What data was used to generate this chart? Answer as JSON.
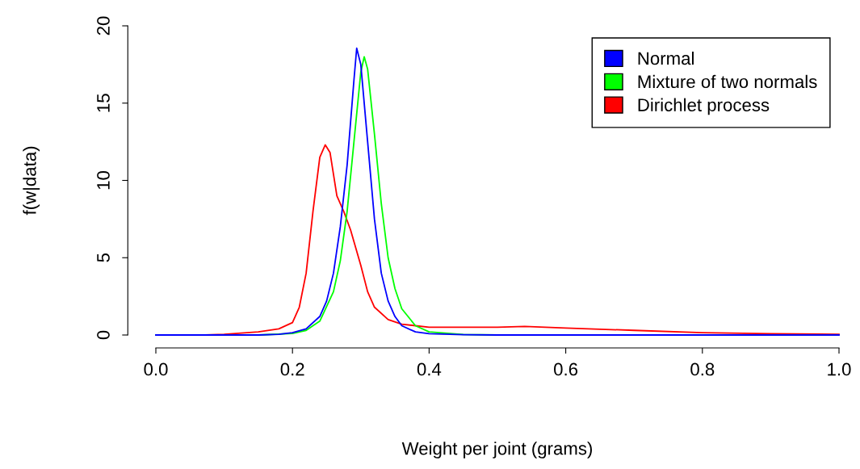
{
  "chart_data": {
    "type": "line",
    "xlabel": "Weight per joint (grams)",
    "ylabel": "f(w|data)",
    "xlim": [
      0,
      1
    ],
    "ylim": [
      0,
      20
    ],
    "xticks": [
      {
        "value": 0,
        "label": "0.0"
      },
      0.2,
      0.4,
      0.6,
      0.8,
      {
        "value": 1,
        "label": "1.0"
      }
    ],
    "yticks": [
      0,
      5,
      10,
      15,
      20
    ],
    "grid": false,
    "legend": "top right",
    "marker": "none",
    "line_style": "solid",
    "series": [
      {
        "name": "Normal",
        "color": "#0000ff",
        "x": [
          0.0,
          0.15,
          0.18,
          0.2,
          0.22,
          0.24,
          0.25,
          0.26,
          0.27,
          0.28,
          0.29,
          0.294,
          0.3,
          0.31,
          0.32,
          0.33,
          0.34,
          0.35,
          0.36,
          0.38,
          0.4,
          0.45,
          0.5,
          1.0
        ],
        "values": [
          0,
          0,
          0.05,
          0.15,
          0.4,
          1.2,
          2.2,
          4.0,
          7.0,
          11.0,
          16.5,
          18.55,
          17.5,
          12.5,
          7.5,
          4.0,
          2.2,
          1.2,
          0.6,
          0.2,
          0.08,
          0.02,
          0,
          0
        ]
      },
      {
        "name": "Mixture of two normals",
        "color": "#00ff00",
        "x": [
          0.0,
          0.15,
          0.2,
          0.22,
          0.24,
          0.26,
          0.27,
          0.28,
          0.29,
          0.3,
          0.305,
          0.31,
          0.32,
          0.33,
          0.34,
          0.35,
          0.36,
          0.38,
          0.4,
          0.45,
          0.5,
          0.674
        ],
        "values": [
          0,
          0,
          0.1,
          0.3,
          0.9,
          2.8,
          4.8,
          8.0,
          12.5,
          17.0,
          18.0,
          17.2,
          13.0,
          8.5,
          5.0,
          3.0,
          1.7,
          0.6,
          0.2,
          0.03,
          0,
          0
        ]
      },
      {
        "name": "Dirichlet process",
        "color": "#ff0000",
        "x": [
          0.07,
          0.1,
          0.15,
          0.18,
          0.2,
          0.21,
          0.22,
          0.23,
          0.24,
          0.248,
          0.255,
          0.265,
          0.275,
          0.285,
          0.3,
          0.31,
          0.32,
          0.34,
          0.36,
          0.4,
          0.5,
          0.54,
          0.6,
          0.7,
          0.8,
          0.9,
          1.0
        ],
        "values": [
          0,
          0.05,
          0.2,
          0.4,
          0.8,
          1.8,
          4.0,
          8.0,
          11.5,
          12.3,
          11.8,
          9.0,
          8.0,
          6.8,
          4.5,
          2.8,
          1.8,
          1.0,
          0.7,
          0.5,
          0.5,
          0.55,
          0.45,
          0.3,
          0.15,
          0.08,
          0.05
        ]
      }
    ]
  }
}
